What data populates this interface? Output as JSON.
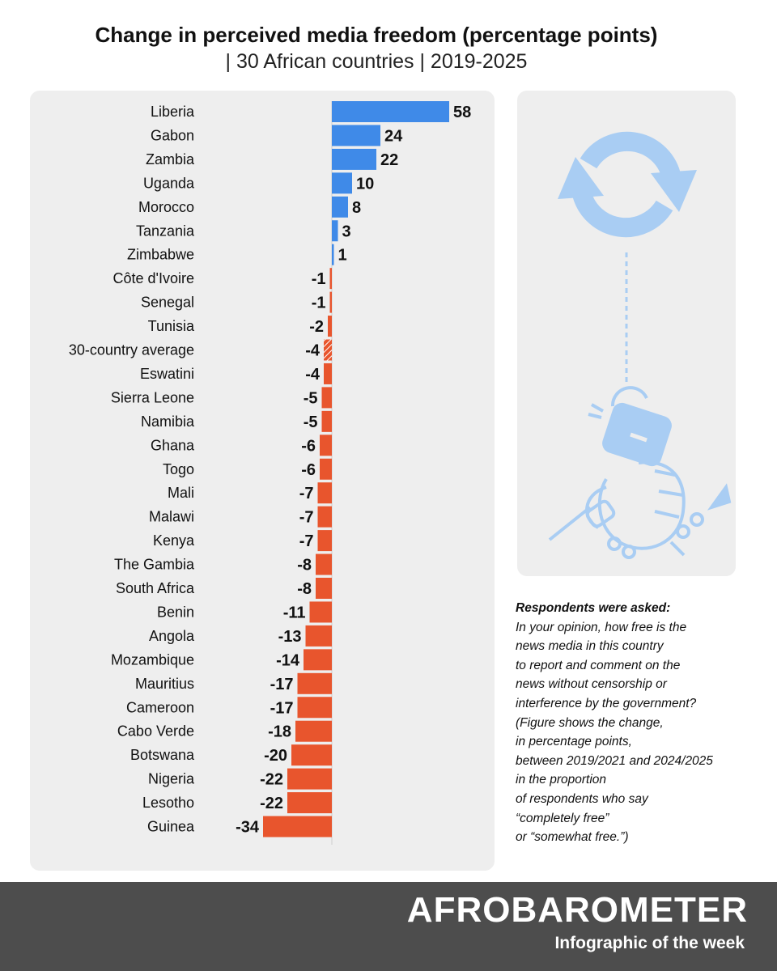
{
  "header": {
    "title": "Change in perceived media freedom (percentage points)",
    "subtitle": "| 30 African countries | 2019-2025"
  },
  "chart_data": {
    "type": "bar",
    "orientation": "horizontal",
    "categories": [
      "Liberia",
      "Gabon",
      "Zambia",
      "Uganda",
      "Morocco",
      "Tanzania",
      "Zimbabwe",
      "Côte d'Ivoire",
      "Senegal",
      "Tunisia",
      "30-country average",
      "Eswatini",
      "Sierra Leone",
      "Namibia",
      "Ghana",
      "Togo",
      "Mali",
      "Malawi",
      "Kenya",
      "The Gambia",
      "South Africa",
      "Benin",
      "Angola",
      "Mozambique",
      "Mauritius",
      "Cameroon",
      "Cabo Verde",
      "Botswana",
      "Nigeria",
      "Lesotho",
      "Guinea"
    ],
    "values": [
      58,
      24,
      22,
      10,
      8,
      3,
      1,
      -1,
      -1,
      -2,
      -4,
      -4,
      -5,
      -5,
      -6,
      -6,
      -7,
      -7,
      -7,
      -8,
      -8,
      -11,
      -13,
      -14,
      -17,
      -17,
      -18,
      -20,
      -22,
      -22,
      -34
    ],
    "value_labels": [
      "58",
      "24",
      "22",
      "10",
      "8",
      "3",
      "1",
      "-1",
      "-1",
      "-2",
      "-4",
      "-4",
      "-5",
      "-5",
      "-6",
      "-6",
      "-7",
      "-7",
      "-7",
      "-8",
      "-8",
      "-11",
      "-13",
      "-14",
      "-17",
      "-17",
      "-18",
      "-20",
      "-22",
      "-22",
      "-34"
    ],
    "highlight_category": "30-country average",
    "colors": {
      "positive": "#3f8ae8",
      "negative": "#e8552d",
      "average_hatch": "#ffffff"
    },
    "xlim": [
      -34,
      58
    ],
    "grid": false,
    "legend": "none"
  },
  "illustration": {
    "icons": [
      "refresh-arrows-icon",
      "microphone-fist-broken-chain-icon"
    ],
    "color": "#a9cdf3"
  },
  "question": {
    "heading": "Respondents were asked:",
    "lines": [
      "In your opinion, how free is the",
      "news media in this country",
      "to report and comment on the",
      "news without censorship or",
      "interference by the government?",
      "(Figure shows the change,",
      "in percentage points,",
      "between 2019/2021 and 2024/2025",
      "in the proportion",
      "of respondents who say",
      "“completely free”",
      "or “somewhat free.”)"
    ]
  },
  "footer": {
    "brand": "AFROBAROMETER",
    "tagline": "Infographic of the week"
  }
}
